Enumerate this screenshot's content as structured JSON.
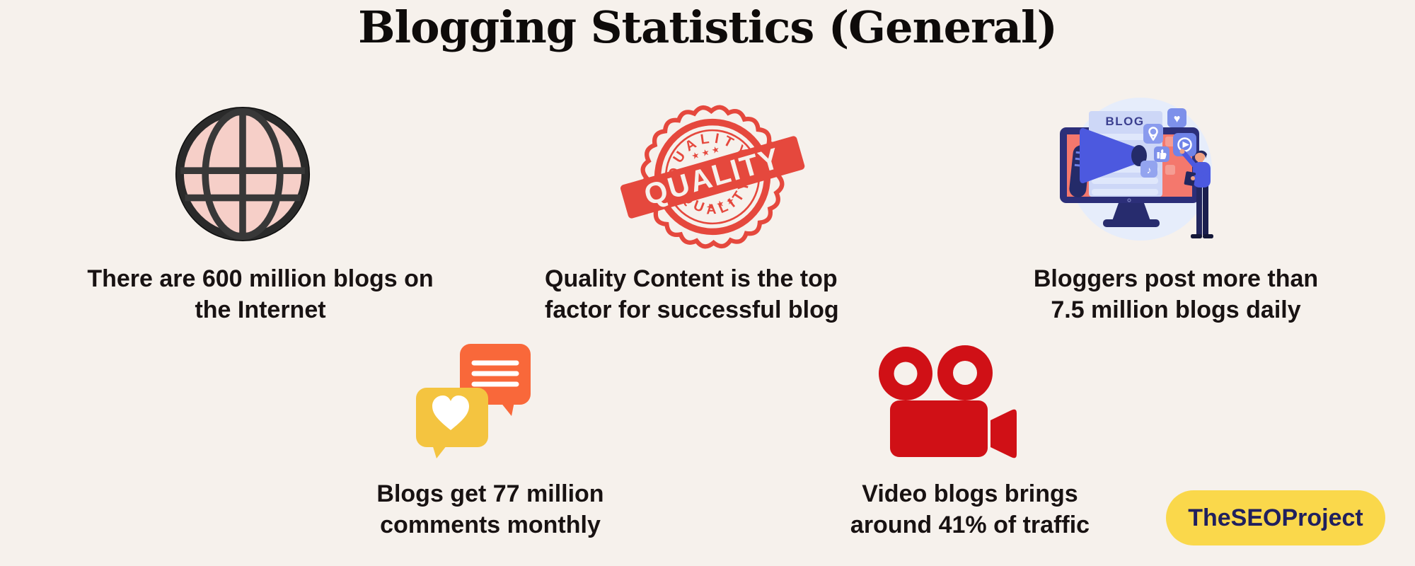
{
  "title": "Blogging Statistics (General)",
  "stats": [
    {
      "icon": "globe-icon",
      "line1": "There are 600 million blogs on",
      "line2": "the Internet"
    },
    {
      "icon": "quality-stamp-icon",
      "line1": "Quality Content is the top",
      "line2": "factor for successful blog"
    },
    {
      "icon": "blog-megaphone-illustration",
      "line1": "Bloggers post more than",
      "line2": "7.5 million blogs daily"
    },
    {
      "icon": "comment-bubbles-icon",
      "line1": "Blogs get 77 million",
      "line2": "comments monthly"
    },
    {
      "icon": "video-camera-icon",
      "line1": "Video blogs brings",
      "line2": "around 41% of traffic"
    }
  ],
  "stamp": {
    "arc_top": "QUALITY",
    "banner": "QUALITY",
    "arc_bottom": "QUALITY",
    "stars": "★ ★ ★"
  },
  "monitor": {
    "screen_label": "BLOG",
    "heart_glyph": "♥",
    "note_glyph": "♪"
  },
  "brand": {
    "label": "TheSEOProject"
  },
  "colors": {
    "background": "#f6f1ec",
    "text": "#181212",
    "stamp_red": "#e5483d",
    "camera_red": "#d01016",
    "bubble_orange": "#f9683a",
    "bubble_yellow": "#f4c440",
    "badge_yellow": "#fad84b",
    "badge_text": "#20205e",
    "globe_pink": "#f6cfc8",
    "globe_stroke": "#383838",
    "monitor_navy": "#2c2f79",
    "screen_coral": "#f4786d",
    "megaphone_blue": "#4c59df",
    "card_periwinkle": "#cdd7f7",
    "icon_square_blue": "#7d90ea",
    "circle_bg": "#e6edfb"
  }
}
